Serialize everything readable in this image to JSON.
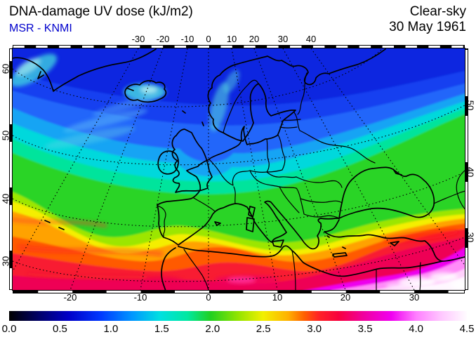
{
  "header": {
    "title": "DNA-damage UV dose (kJ/m2)",
    "source": "MSR - KNMI",
    "source_color": "#0000cc",
    "condition": "Clear-sky",
    "date": "30 May 1961"
  },
  "axes": {
    "top": [
      "-30",
      "-20",
      "-10",
      "0",
      "10",
      "20",
      "30",
      "40"
    ],
    "bottom": [
      "-20",
      "-10",
      "0",
      "10",
      "20",
      "30"
    ],
    "left": [
      "60",
      "50",
      "40",
      "30"
    ],
    "right": [
      "50",
      "40",
      "30"
    ]
  },
  "colorbar": {
    "labels": [
      "0.0",
      "0.5",
      "1.0",
      "1.5",
      "2.0",
      "2.5",
      "3.0",
      "3.5",
      "4.0",
      "4.5"
    ],
    "min": 0.0,
    "max": 4.5,
    "units": "kJ/m2",
    "stops": [
      [
        0.0,
        "#000000"
      ],
      [
        0.07,
        "#000070"
      ],
      [
        0.13,
        "#0000c8"
      ],
      [
        0.2,
        "#0038ff"
      ],
      [
        0.27,
        "#0098ff"
      ],
      [
        0.33,
        "#00e0e0"
      ],
      [
        0.39,
        "#00e8a0"
      ],
      [
        0.44,
        "#20d020"
      ],
      [
        0.5,
        "#92e400"
      ],
      [
        0.555,
        "#f2f000"
      ],
      [
        0.61,
        "#ffb000"
      ],
      [
        0.645,
        "#ff6000"
      ],
      [
        0.675,
        "#ff2424"
      ],
      [
        0.72,
        "#f8003e"
      ],
      [
        0.775,
        "#f000a0"
      ],
      [
        0.835,
        "#f000f0"
      ],
      [
        0.89,
        "#ff80ff"
      ],
      [
        0.945,
        "#ffc8ff"
      ],
      [
        1.0,
        "#fffcff"
      ]
    ]
  },
  "chart_data": {
    "type": "heatmap",
    "title": "DNA-damage UV dose (kJ/m2)",
    "condition": "Clear-sky",
    "date": "30 May 1961",
    "source": "MSR - KNMI",
    "region": "Europe / North Atlantic / North Africa",
    "longitude_ticks": [
      -30,
      -20,
      -10,
      0,
      10,
      20,
      30,
      40
    ],
    "latitude_ticks": [
      30,
      40,
      50,
      60
    ],
    "scale_min": 0.0,
    "scale_max": 4.5,
    "scale_ticks": [
      0.0,
      0.5,
      1.0,
      1.5,
      2.0,
      2.5,
      3.0,
      3.5,
      4.0,
      4.5
    ],
    "field_summary": "≈1.0 kJ/m2 (deep blue) over the Norwegian/Barents Sea in the north, ≈1.5 cyan over the British Isles and central Europe, ≈2.0-2.5 green over France, Iberia, Italy and the Balkans, rising through yellow/orange ≈2.5-3.0 over the western Atlantic and southern Spain, red ≈3.2 along North Africa and southern Turkey, magenta ≈3.5-4.0 over the southern Mediterranean, and near-white ≈4.5 over Egypt/Libya in the southeast corner"
  }
}
